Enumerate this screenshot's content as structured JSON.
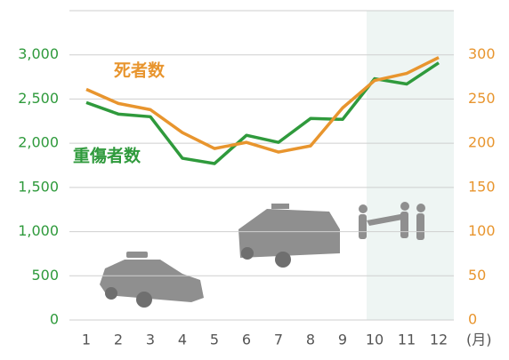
{
  "chart_data": {
    "type": "line",
    "categories": [
      "1",
      "2",
      "3",
      "4",
      "5",
      "6",
      "7",
      "8",
      "9",
      "10",
      "11",
      "12"
    ],
    "xlabel": "(月)",
    "series": [
      {
        "name": "重傷者数",
        "color": "#2f9a3c",
        "values": [
          2460,
          2330,
          2300,
          1830,
          1770,
          2090,
          2010,
          2280,
          2270,
          2730,
          2670,
          2910
        ]
      },
      {
        "name": "死者数",
        "color": "#e8952e",
        "axis": "y2",
        "values": [
          261,
          245,
          238,
          212,
          194,
          201,
          190,
          197,
          240,
          271,
          279,
          297
        ]
      }
    ],
    "ylim": [
      0,
      3500
    ],
    "yticks": [
      0,
      500,
      {
        "value": 1000,
        "label": "1,000"
      },
      {
        "value": 1500,
        "label": "1,500"
      },
      {
        "value": 2000,
        "label": "2,000"
      },
      {
        "value": 2500,
        "label": "2,500"
      },
      {
        "value": 3000,
        "label": "3,000"
      }
    ],
    "y2lim": [
      0,
      350
    ],
    "y2ticks": [
      0,
      50,
      100,
      150,
      200,
      250,
      300
    ],
    "grid": true
  }
}
